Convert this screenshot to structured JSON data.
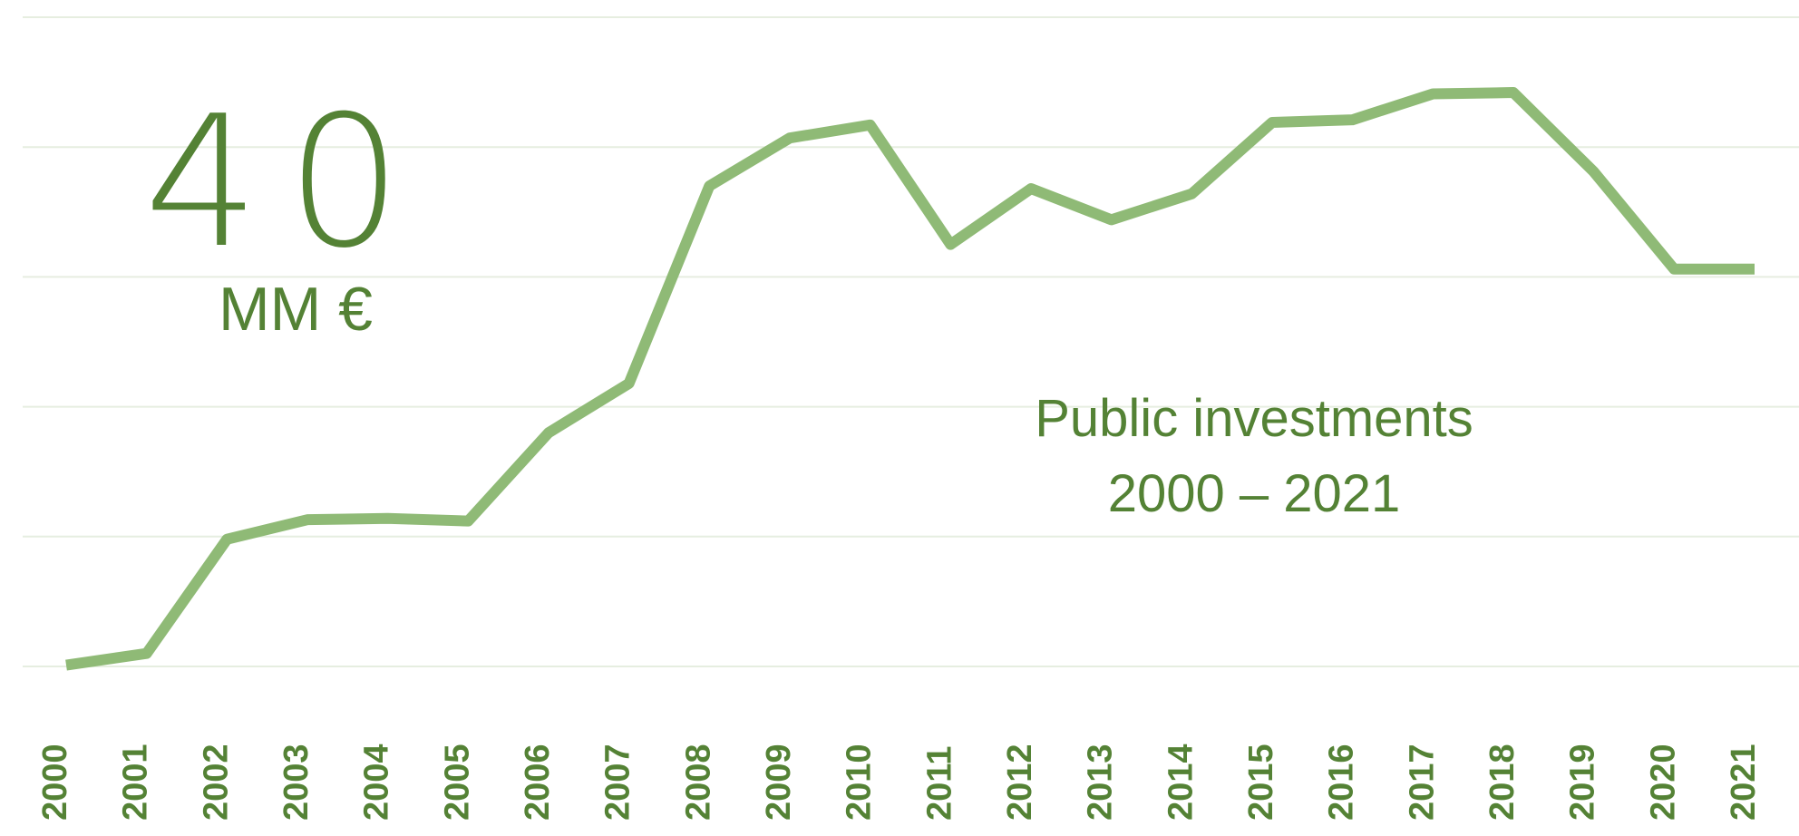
{
  "chart_data": {
    "type": "line",
    "headline": "40",
    "headline_unit": "MM €",
    "annotation": [
      "Public investments",
      "2000 – 2021"
    ],
    "categories": [
      "2000",
      "2001",
      "2002",
      "2003",
      "2004",
      "2005",
      "2006",
      "2007",
      "2008",
      "2009",
      "2010",
      "2011",
      "2012",
      "2013",
      "2014",
      "2015",
      "2016",
      "2017",
      "2018",
      "2019",
      "2020",
      "2021"
    ],
    "series": [
      {
        "color": "#8fba76",
        "values": [
          0.1,
          1.0,
          9.8,
          11.3,
          11.4,
          11.2,
          18.0,
          21.8,
          37.0,
          40.7,
          41.7,
          32.5,
          36.8,
          34.4,
          36.4,
          41.9,
          42.1,
          44.1,
          44.2,
          38.1,
          30.6,
          30.6
        ]
      }
    ],
    "ylim": [
      0,
      50
    ],
    "yticks": [
      0,
      10,
      20,
      30,
      40,
      50
    ],
    "grid": true,
    "text_color": "#548235"
  }
}
